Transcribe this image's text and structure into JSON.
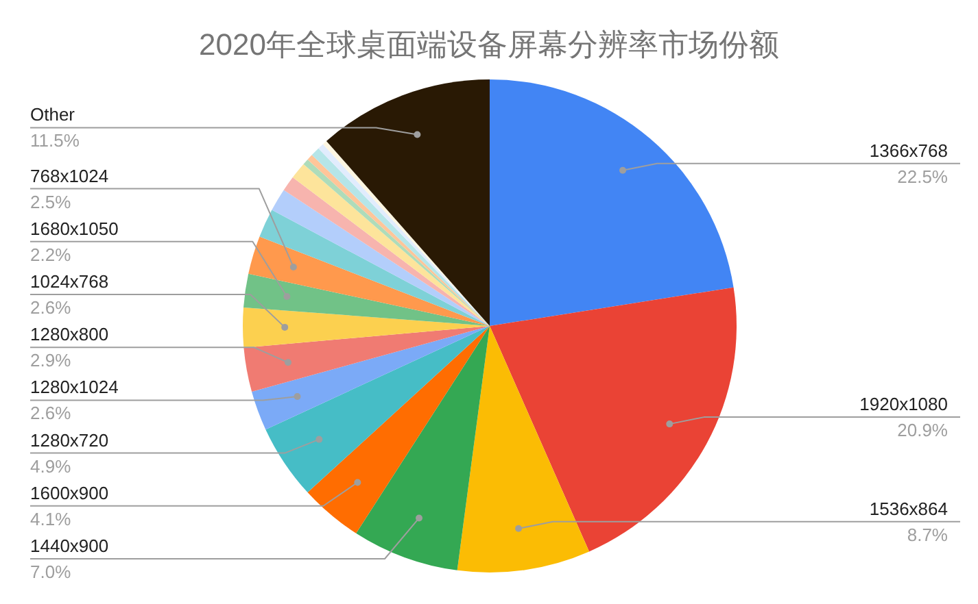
{
  "chart_data": {
    "type": "pie",
    "title": "2020年全球桌面端设备屏幕分辨率市场份额",
    "categories": [
      "1366x768",
      "1920x1080",
      "1536x864",
      "1440x900",
      "1600x900",
      "1280x720",
      "1280x1024",
      "1280x800",
      "1024x768",
      "1680x1050",
      "768x1024",
      null,
      null,
      null,
      null,
      null,
      null,
      null,
      null,
      null,
      "Other"
    ],
    "values": [
      22.5,
      20.9,
      8.7,
      7.0,
      4.1,
      4.9,
      2.6,
      2.9,
      2.6,
      2.2,
      2.5,
      1.9,
      1.5,
      1.0,
      1.1,
      0.4,
      0.4,
      0.6,
      0.4,
      0.3,
      11.5
    ],
    "value_labels": [
      "22.5%",
      "20.9%",
      "8.7%",
      "7.0%",
      "4.1%",
      "4.9%",
      "2.6%",
      "2.9%",
      "2.6%",
      "2.2%",
      "2.5%",
      null,
      null,
      null,
      null,
      null,
      null,
      null,
      null,
      null,
      "11.5%"
    ],
    "colors": [
      "#4285f4",
      "#ea4335",
      "#fbbc04",
      "#34a853",
      "#ff6d01",
      "#46bdc6",
      "#7baaf7",
      "#f07b72",
      "#fcd04f",
      "#71c287",
      "#ff994d",
      "#7ed1d7",
      "#b3cefb",
      "#f7b4ae",
      "#fde49b",
      "#aedcba",
      "#ffc599",
      "#b5e5e8",
      "#e1ecfd",
      "#fdf6e1",
      "#291904"
    ],
    "legend": false
  }
}
